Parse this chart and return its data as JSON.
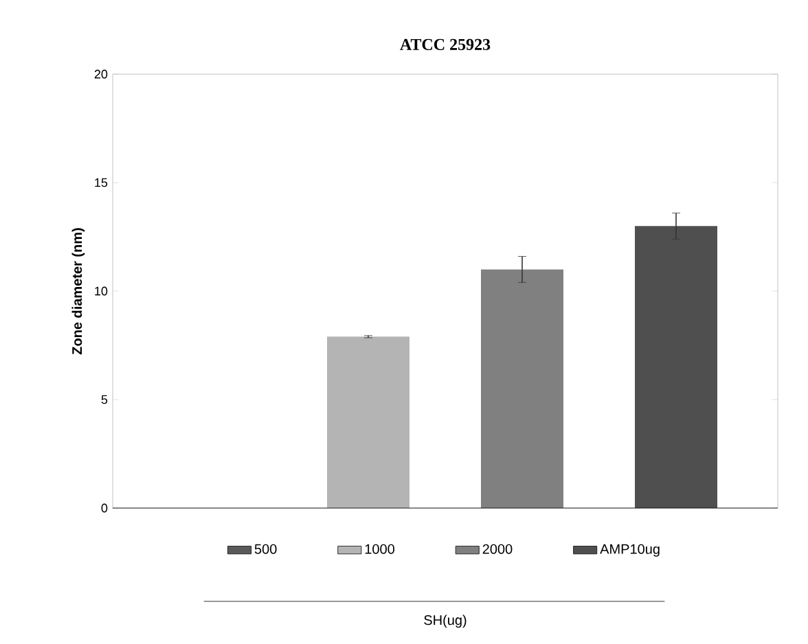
{
  "chart_data": {
    "type": "bar",
    "title": "ATCC 25923",
    "annotations": [
      "SH(ug)"
    ],
    "ylabel": "Zone diameter (nm)",
    "categories": [
      null
    ],
    "series": [
      {
        "name": "500",
        "color": "#5a5a5a",
        "values": [
          0
        ]
      },
      {
        "name": "1000",
        "color": "#b4b4b4",
        "values": [
          7.9
        ],
        "errors": [
          0.05
        ]
      },
      {
        "name": "2000",
        "color": "#808080",
        "values": [
          11.0
        ],
        "errors": [
          0.6
        ]
      },
      {
        "name": "AMP10ug",
        "color": "#4f4f4f",
        "values": [
          13.0
        ],
        "errors": [
          0.6
        ]
      }
    ],
    "ylim": [
      0,
      20
    ],
    "yticks": [
      0,
      5,
      10,
      15,
      20
    ],
    "grid": false,
    "legend": "bottom"
  }
}
